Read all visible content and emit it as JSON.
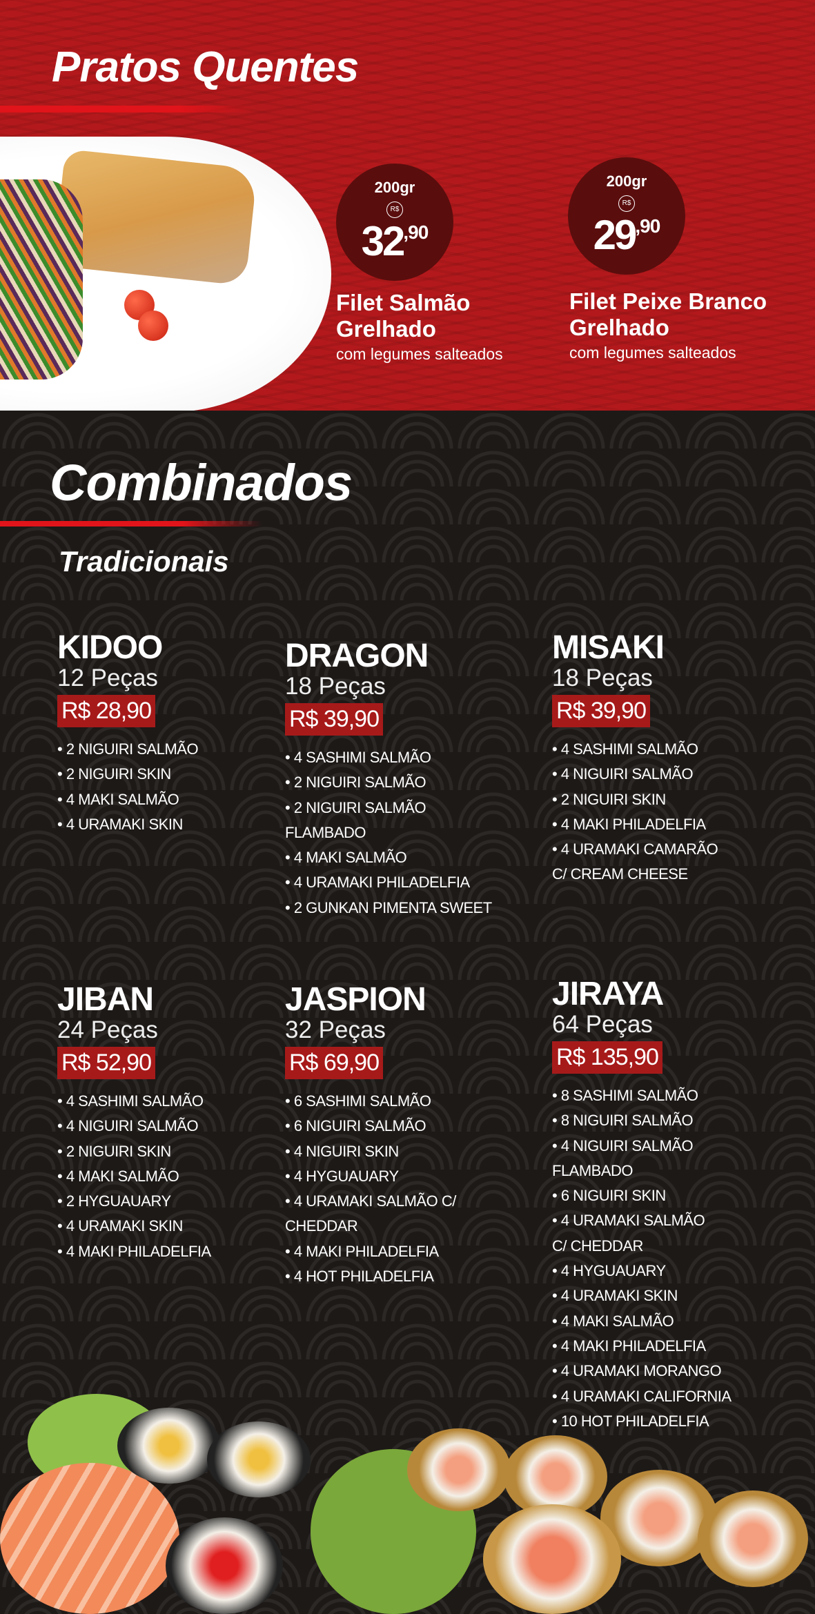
{
  "hot": {
    "title": "Pratos Quentes",
    "dishes": [
      {
        "weight": "200gr",
        "currency": "R$",
        "price_int": "32",
        "price_cents": ",90",
        "name": "Filet Salmão Grelhado",
        "desc": "com legumes salteados"
      },
      {
        "weight": "200gr",
        "currency": "R$",
        "price_int": "29",
        "price_cents": ",90",
        "name": "Filet Peixe Branco Grelhado",
        "desc": "com legumes salteados"
      }
    ]
  },
  "combos": {
    "title": "Combinados",
    "subtitle": "Tradicionais",
    "items": [
      {
        "name": "KIDOO",
        "pieces": "12 Peças",
        "price": "R$ 28,90",
        "list": [
          "• 2 NIGUIRI SALMÃO",
          "• 2 NIGUIRI SKIN",
          "• 4 MAKI SALMÃO",
          "• 4 URAMAKI SKIN"
        ]
      },
      {
        "name": "DRAGON",
        "pieces": "18 Peças",
        "price": "R$ 39,90",
        "list": [
          "• 4 SASHIMI SALMÃO",
          "• 2 NIGUIRI SALMÃO",
          "• 2 NIGUIRI SALMÃO",
          "FLAMBADO",
          "• 4 MAKI SALMÃO",
          "• 4 URAMAKI PHILADELFIA",
          "• 2 GUNKAN PIMENTA SWEET"
        ]
      },
      {
        "name": "MISAKI",
        "pieces": "18 Peças",
        "price": "R$ 39,90",
        "list": [
          "• 4 SASHIMI SALMÃO",
          "• 4 NIGUIRI SALMÃO",
          "• 2 NIGUIRI SKIN",
          "• 4 MAKI PHILADELFIA",
          "• 4 URAMAKI CAMARÃO",
          "C/ CREAM CHEESE"
        ]
      },
      {
        "name": "JIBAN",
        "pieces": "24 Peças",
        "price": "R$ 52,90",
        "list": [
          "• 4 SASHIMI SALMÃO",
          "• 4 NIGUIRI SALMÃO",
          "• 2 NIGUIRI SKIN",
          "• 4 MAKI SALMÃO",
          "• 2 HYGUAUARY",
          "• 4 URAMAKI SKIN",
          "• 4 MAKI PHILADELFIA"
        ]
      },
      {
        "name": "JASPION",
        "pieces": "32 Peças",
        "price": "R$ 69,90",
        "list": [
          "• 6 SASHIMI SALMÃO",
          "• 6 NIGUIRI SALMÃO",
          "• 4 NIGUIRI SKIN",
          "• 4 HYGUAUARY",
          "• 4 URAMAKI SALMÃO C/",
          "CHEDDAR",
          "• 4 MAKI PHILADELFIA",
          "• 4 HOT PHILADELFIA"
        ]
      },
      {
        "name": "JIRAYA",
        "pieces": "64 Peças",
        "price": "R$ 135,90",
        "list": [
          "• 8 SASHIMI SALMÃO",
          "• 8 NIGUIRI SALMÃO",
          "• 4 NIGUIRI SALMÃO",
          "FLAMBADO",
          "• 6 NIGUIRI SKIN",
          "• 4 URAMAKI SALMÃO",
          "C/ CHEDDAR",
          "• 4 HYGUAUARY",
          "• 4 URAMAKI SKIN",
          "• 4 MAKI SALMÃO",
          "• 4 MAKI PHILADELFIA",
          "• 4 URAMAKI MORANGO",
          "• 4 URAMAKI CALIFORNIA",
          "• 10 HOT PHILADELFIA"
        ]
      }
    ]
  },
  "colors": {
    "hot_bg": "#b3191c",
    "dark_bg": "#1d1917",
    "price_box": "#a71a1a",
    "circle": "#5a0d0d"
  }
}
